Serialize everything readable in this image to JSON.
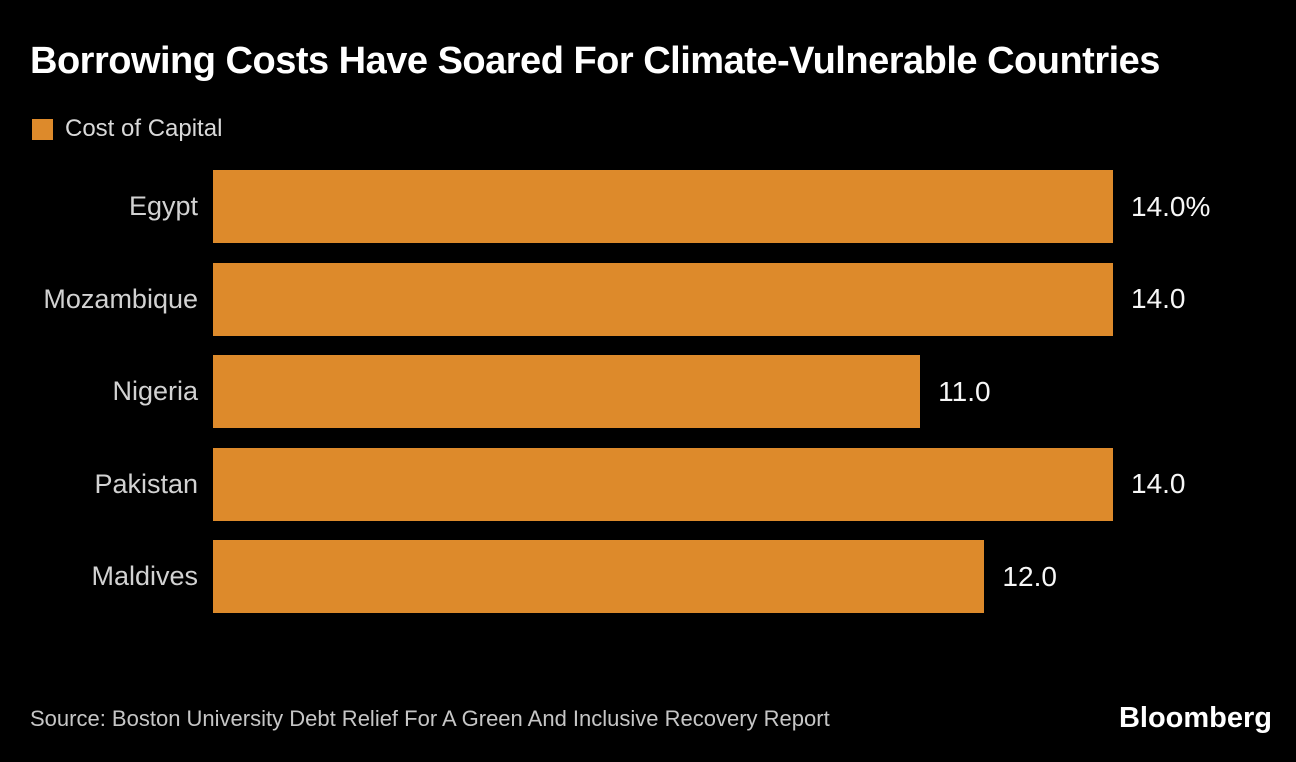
{
  "header": {
    "title": "Borrowing Costs Have Soared For Climate-Vulnerable Countries"
  },
  "legend": {
    "label": "Cost of Capital",
    "swatch_color": "#dd8a2b"
  },
  "chart_data": {
    "type": "bar",
    "orientation": "horizontal",
    "title": "Borrowing Costs Have Soared For Climate-Vulnerable Countries",
    "series_name": "Cost of Capital",
    "categories": [
      "Egypt",
      "Mozambique",
      "Nigeria",
      "Pakistan",
      "Maldives"
    ],
    "values": [
      14.0,
      14.0,
      11.0,
      14.0,
      12.0
    ],
    "value_labels": [
      "14.0%",
      "14.0",
      "11.0",
      "14.0",
      "12.0"
    ],
    "unit": "percent",
    "xlabel": "",
    "ylabel": "",
    "xlim": [
      0,
      14
    ],
    "grid": false,
    "bar_color": "#dd8a2b",
    "background_color": "#000000",
    "legend_position": "top-left"
  },
  "footer": {
    "source": "Source: Boston University Debt Relief For A Green And Inclusive Recovery Report",
    "brand": "Bloomberg"
  }
}
